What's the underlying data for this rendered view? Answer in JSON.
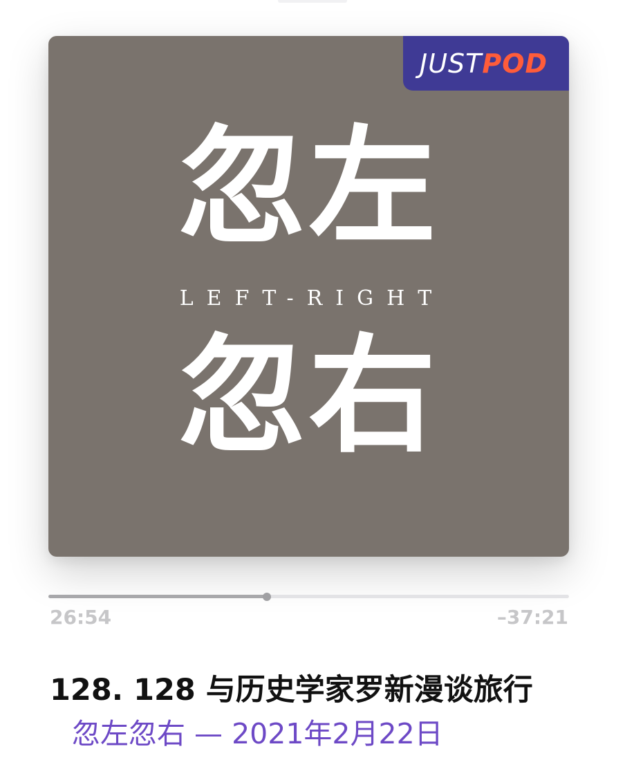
{
  "artwork": {
    "brand_prefix": "JUST",
    "brand_suffix": "POD",
    "title_top": "忽左",
    "title_latin": "LEFT-RIGHT",
    "title_bottom": "忽右",
    "background_color": "#7a736d",
    "badge_color": "#3f3a95",
    "brand_accent": "#ff5c3a"
  },
  "player": {
    "elapsed": "26:54",
    "remaining": "–37:21",
    "progress_fraction": 0.419
  },
  "episode": {
    "title": "128. 128 与历史学家罗新漫谈旅行",
    "subtitle": "忽左忽右 — 2021年2月22日",
    "subtitle_color": "#6d49c6"
  }
}
